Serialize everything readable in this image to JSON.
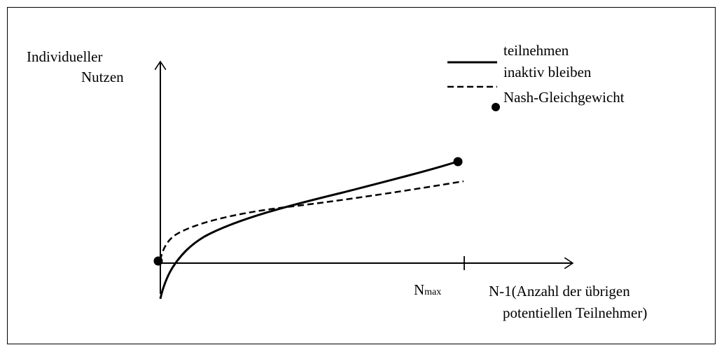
{
  "axes": {
    "y_label_line1": "Individueller",
    "y_label_line2": "Nutzen",
    "x_label_line1": "N-1(Anzahl der übrigen",
    "x_label_line2": "potentiellen Teilnehmer)",
    "xmax_label_main": "N",
    "xmax_label_sub": "max"
  },
  "legend": {
    "items": [
      {
        "label": "teilnehmen",
        "style": "solid"
      },
      {
        "label": "inaktiv bleiben",
        "style": "dashed"
      },
      {
        "label": "Nash-Gleichgewicht",
        "style": "dot"
      }
    ]
  },
  "colors": {
    "line": "#000000",
    "background": "#ffffff"
  }
}
